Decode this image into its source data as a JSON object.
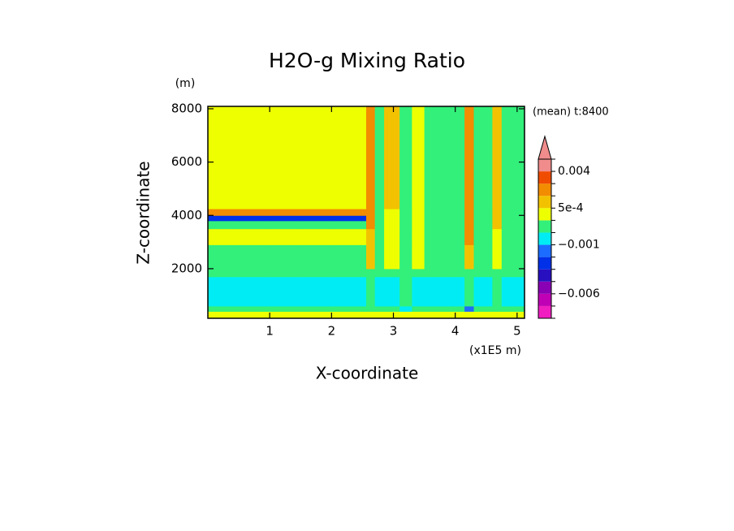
{
  "chart_data": {
    "type": "contour",
    "title": "H2O-g Mixing Ratio",
    "x_label": "X-coordinate",
    "x_unit": "(x1E5 m)",
    "y_label": "Z-coordinate",
    "y_unit": "(m)",
    "annotation": "(mean) t:8400",
    "xlim": [
      0,
      5.12
    ],
    "ylim": [
      140,
      8090
    ],
    "xticks": [
      1,
      2,
      3,
      4,
      5
    ],
    "yticks": [
      2000,
      4000,
      6000,
      8000
    ],
    "x_edges": [
      0,
      0.5,
      1.0,
      1.5,
      2.0,
      2.56,
      2.7,
      2.85,
      3.1,
      3.3,
      3.5,
      3.8,
      4.15,
      4.3,
      4.6,
      4.75,
      5.12
    ],
    "y_edges": [
      140,
      400,
      600,
      1700,
      2000,
      2900,
      3500,
      3800,
      4000,
      4250,
      8090
    ],
    "z": [
      [
        0.0002,
        0.0002,
        0.0002,
        0.0002,
        0.0002,
        0.0002,
        0.0002,
        0.0002,
        0.0002,
        0.0002,
        0.0002,
        0.0002,
        0.0002,
        0.0002,
        0.0002,
        0.0002
      ],
      [
        -0.0003,
        -0.0003,
        -0.0003,
        -0.0003,
        -0.0003,
        -0.0003,
        -0.0003,
        -0.0003,
        -0.0007,
        -0.0003,
        -0.0003,
        -0.0003,
        -0.0012,
        -0.0003,
        -0.0003,
        -0.0003
      ],
      [
        -0.0007,
        -0.0007,
        -0.0007,
        -0.0007,
        -0.0007,
        -0.0003,
        -0.0007,
        -0.0007,
        -0.0003,
        -0.0007,
        -0.0007,
        -0.0007,
        -0.0003,
        -0.0007,
        -0.0003,
        -0.0007
      ],
      [
        -0.0003,
        -0.0003,
        -0.0003,
        -0.0003,
        -0.0003,
        -0.0003,
        -0.0003,
        -0.0003,
        -0.0003,
        -0.0003,
        -0.0003,
        -0.0003,
        -0.0003,
        -0.0003,
        -0.0003,
        -0.0003
      ],
      [
        -0.0003,
        -0.0003,
        -0.0003,
        -0.0003,
        -0.0003,
        0.0007,
        -0.0003,
        0.0002,
        -0.0003,
        0.0002,
        -0.0003,
        -0.0003,
        0.0007,
        -0.0003,
        0.0002,
        -0.0003
      ],
      [
        0.0002,
        0.0002,
        0.0002,
        0.0002,
        0.0002,
        0.0007,
        -0.0003,
        0.0002,
        -0.0003,
        0.0002,
        -0.0003,
        -0.0003,
        0.0015,
        -0.0003,
        0.0002,
        -0.0003
      ],
      [
        -0.0003,
        -0.0003,
        -0.0003,
        -0.0003,
        -0.0003,
        0.0015,
        -0.0003,
        0.0002,
        -0.0003,
        0.0002,
        -0.0003,
        -0.0003,
        0.0015,
        -0.0003,
        0.0007,
        -0.0003
      ],
      [
        -0.0017,
        -0.0017,
        -0.0017,
        -0.0017,
        -0.0017,
        0.0015,
        -0.0003,
        0.0002,
        -0.0003,
        0.0002,
        -0.0003,
        -0.0003,
        0.0015,
        -0.0003,
        0.0007,
        -0.0003
      ],
      [
        0.0015,
        0.0015,
        0.0015,
        0.0015,
        0.0015,
        0.0015,
        -0.0003,
        0.0002,
        -0.0003,
        0.0002,
        -0.0003,
        -0.0003,
        0.0015,
        -0.0003,
        0.0007,
        -0.0003
      ],
      [
        0.0002,
        0.0002,
        0.0002,
        0.0002,
        0.0002,
        0.0015,
        -0.0003,
        0.0007,
        -0.0003,
        0.0002,
        -0.0003,
        -0.0003,
        0.0015,
        -0.0003,
        0.0007,
        -0.0003
      ]
    ],
    "levels": [
      -0.01,
      -0.008,
      -0.006,
      -0.004,
      -0.002,
      -0.0015,
      -0.001,
      -0.0005,
      0,
      0.0005,
      0.001,
      0.002,
      0.004,
      0.008
    ],
    "colors": [
      "#f01ec0",
      "#c000b4",
      "#8a00b4",
      "#2810c0",
      "#0030e8",
      "#1c6cff",
      "#00ecf4",
      "#32f07a",
      "#eeff00",
      "#f2c200",
      "#f28c00",
      "#f04c00",
      "#f08c8c"
    ],
    "colorbar_ticks": [
      {
        "value": -0.006,
        "label": "−0.006"
      },
      {
        "value": -0.001,
        "label": "−0.001"
      },
      {
        "value": 0.0005,
        "label": "5e-4"
      },
      0.004
    ]
  }
}
